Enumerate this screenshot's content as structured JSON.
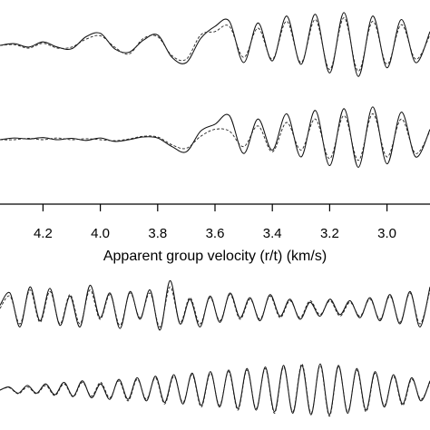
{
  "chart_data": {
    "type": "line",
    "title": "",
    "xlabel": "Apparent group velocity (r/t) (km/s)",
    "ylabel": "",
    "xlim": [
      4.35,
      2.85
    ],
    "x_direction": "decreasing",
    "grid": false,
    "legend": "none",
    "x_ticks": [
      4.2,
      4.0,
      3.8,
      3.6,
      3.4,
      3.2,
      3.0
    ],
    "x_tick_labels": [
      "4.2",
      "4.0",
      "3.8",
      "3.6",
      "3.4",
      "3.2",
      "3.0"
    ],
    "series": [
      {
        "style": "solid",
        "panel": 1,
        "x": [
          4.35,
          4.3,
          4.25,
          4.2,
          4.15,
          4.1,
          4.05,
          4.0,
          3.95,
          3.9,
          3.85,
          3.8,
          3.75,
          3.7,
          3.65,
          3.6,
          3.55,
          3.5,
          3.45,
          3.4,
          3.35,
          3.3,
          3.25,
          3.2,
          3.15,
          3.1,
          3.05,
          3.0,
          2.95,
          2.9,
          2.85
        ],
        "y": [
          0.0,
          0.05,
          -0.05,
          0.1,
          -0.05,
          -0.1,
          0.25,
          0.35,
          -0.1,
          -0.2,
          0.15,
          0.3,
          -0.35,
          -0.5,
          0.2,
          0.55,
          0.7,
          -0.5,
          0.65,
          -0.45,
          0.85,
          -0.55,
          0.9,
          -0.8,
          0.95,
          -0.9,
          0.85,
          -0.65,
          0.75,
          -0.5,
          0.4
        ]
      },
      {
        "style": "dashed",
        "panel": 1,
        "x": [
          4.35,
          4.3,
          4.25,
          4.2,
          4.15,
          4.1,
          4.05,
          4.0,
          3.95,
          3.9,
          3.85,
          3.8,
          3.75,
          3.7,
          3.65,
          3.6,
          3.55,
          3.5,
          3.45,
          3.4,
          3.35,
          3.3,
          3.25,
          3.2,
          3.15,
          3.1,
          3.05,
          3.0,
          2.95,
          2.9,
          2.85
        ],
        "y": [
          0.0,
          0.02,
          -0.08,
          0.06,
          -0.08,
          -0.05,
          0.18,
          0.28,
          -0.05,
          -0.25,
          0.2,
          0.25,
          -0.3,
          -0.4,
          0.3,
          0.4,
          0.55,
          -0.35,
          0.5,
          -0.4,
          0.7,
          -0.5,
          0.75,
          -0.7,
          0.8,
          -0.75,
          0.7,
          -0.55,
          0.6,
          -0.4,
          0.3
        ]
      },
      {
        "style": "solid",
        "panel": 2,
        "x": [
          4.35,
          4.3,
          4.25,
          4.2,
          4.15,
          4.1,
          4.05,
          4.0,
          3.95,
          3.9,
          3.85,
          3.8,
          3.75,
          3.7,
          3.65,
          3.6,
          3.55,
          3.5,
          3.45,
          3.4,
          3.35,
          3.3,
          3.25,
          3.2,
          3.15,
          3.1,
          3.05,
          3.0,
          2.95,
          2.9,
          2.85
        ],
        "y": [
          0.0,
          0.05,
          0.02,
          0.06,
          0.0,
          0.04,
          -0.02,
          0.05,
          -0.05,
          0.0,
          0.08,
          0.05,
          -0.2,
          -0.35,
          0.25,
          0.45,
          0.7,
          -0.4,
          0.6,
          -0.3,
          0.75,
          -0.5,
          0.85,
          -0.75,
          0.9,
          -0.8,
          0.95,
          -0.7,
          0.8,
          -0.5,
          0.3
        ]
      },
      {
        "style": "dashed",
        "panel": 2,
        "x": [
          4.35,
          4.3,
          4.25,
          4.2,
          4.15,
          4.1,
          4.05,
          4.0,
          3.95,
          3.9,
          3.85,
          3.8,
          3.75,
          3.7,
          3.65,
          3.6,
          3.55,
          3.5,
          3.45,
          3.4,
          3.35,
          3.3,
          3.25,
          3.2,
          3.15,
          3.1,
          3.05,
          3.0,
          2.95,
          2.9,
          2.85
        ],
        "y": [
          0.0,
          0.0,
          0.04,
          0.0,
          0.05,
          0.0,
          0.03,
          0.0,
          -0.03,
          0.02,
          0.1,
          0.08,
          -0.15,
          -0.25,
          0.1,
          0.3,
          0.25,
          -0.2,
          0.4,
          -0.35,
          0.5,
          -0.3,
          0.6,
          -0.55,
          0.7,
          -0.6,
          0.75,
          -0.5,
          0.6,
          -0.4,
          0.25
        ]
      },
      {
        "style": "solid",
        "panel": 3,
        "samples": [
          0.1,
          0.5,
          -0.6,
          0.7,
          -0.4,
          0.65,
          -0.55,
          0.4,
          -0.6,
          0.75,
          -0.3,
          0.5,
          -0.65,
          0.55,
          -0.35,
          0.6,
          -0.7,
          0.9,
          -0.5,
          0.3,
          -0.6,
          0.4,
          -0.45,
          0.5,
          -0.3,
          0.35,
          -0.4,
          0.45,
          -0.25,
          0.3,
          -0.35,
          0.2,
          -0.25,
          0.3,
          -0.2,
          0.25,
          -0.3,
          0.35,
          -0.4,
          0.45,
          -0.5,
          0.55,
          -0.6,
          0.7
        ]
      },
      {
        "style": "dashed",
        "panel": 3,
        "samples": [
          0.0,
          0.4,
          -0.5,
          0.6,
          -0.45,
          0.55,
          -0.5,
          0.45,
          -0.5,
          0.6,
          -0.35,
          0.45,
          -0.55,
          0.5,
          -0.3,
          0.5,
          -0.6,
          0.7,
          -0.45,
          0.35,
          -0.5,
          0.35,
          -0.4,
          0.45,
          -0.35,
          0.3,
          -0.35,
          0.4,
          -0.3,
          0.25,
          -0.3,
          0.25,
          -0.2,
          0.25,
          -0.25,
          0.2,
          -0.25,
          0.3,
          -0.35,
          0.4,
          -0.45,
          0.5,
          -0.5,
          0.6
        ]
      },
      {
        "style": "solid",
        "panel": 4,
        "samples": [
          0.0,
          0.1,
          -0.1,
          0.15,
          -0.1,
          0.2,
          -0.15,
          0.25,
          -0.2,
          0.3,
          -0.25,
          0.2,
          -0.3,
          0.35,
          -0.3,
          0.4,
          -0.35,
          0.45,
          -0.4,
          0.5,
          -0.45,
          0.55,
          -0.5,
          0.6,
          -0.55,
          0.65,
          -0.6,
          0.7,
          -0.65,
          0.75,
          -0.7,
          0.8,
          -0.75,
          0.8,
          -0.8,
          0.85,
          -0.8,
          0.8,
          -0.75,
          0.7,
          -0.65,
          0.6,
          -0.55,
          0.5,
          -0.45,
          0.4,
          -0.35,
          0.3
        ]
      },
      {
        "style": "dashed",
        "panel": 4,
        "samples": [
          0.0,
          0.08,
          -0.12,
          0.1,
          -0.12,
          0.15,
          -0.18,
          0.2,
          -0.22,
          0.25,
          -0.2,
          0.25,
          -0.25,
          0.3,
          -0.35,
          0.35,
          -0.3,
          0.4,
          -0.45,
          0.45,
          -0.4,
          0.5,
          -0.55,
          0.55,
          -0.5,
          0.6,
          -0.65,
          0.65,
          -0.6,
          0.7,
          -0.75,
          0.75,
          -0.7,
          0.85,
          -0.75,
          0.8,
          -0.85,
          0.75,
          -0.7,
          0.65,
          -0.7,
          0.55,
          -0.5,
          0.45,
          -0.5,
          0.35,
          -0.3,
          0.25
        ]
      }
    ]
  }
}
